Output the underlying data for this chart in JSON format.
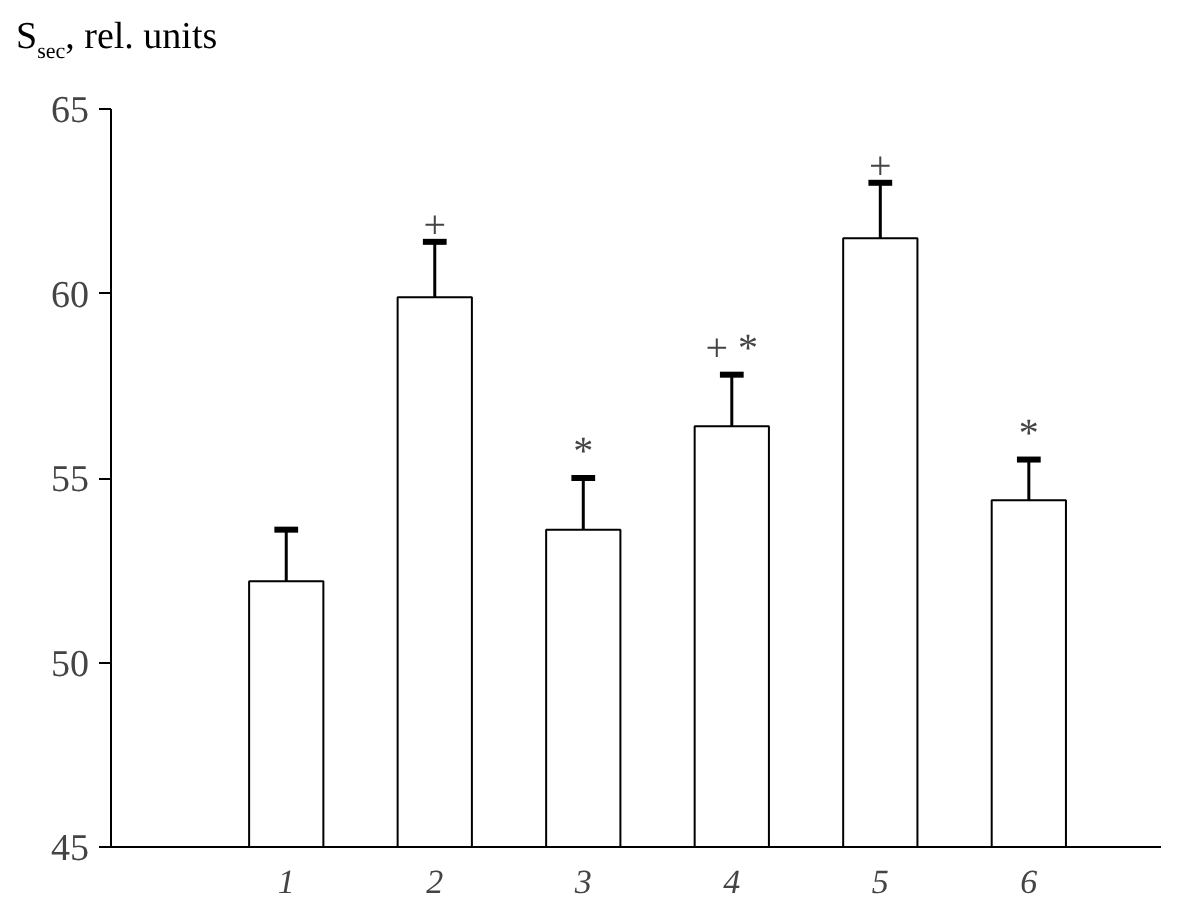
{
  "chart_data": {
    "type": "bar",
    "ylabel": "S$_{sec}$, rel. units",
    "categories": [
      "1",
      "2",
      "3",
      "4",
      "5",
      "6"
    ],
    "values": [
      52.2,
      59.9,
      53.6,
      56.4,
      61.5,
      54.4
    ],
    "errors": [
      [
        52.2,
        53.6
      ],
      [
        59.9,
        61.4
      ],
      [
        53.6,
        55.0
      ],
      [
        56.4,
        57.8
      ],
      [
        61.5,
        63.0
      ],
      [
        54.4,
        55.5
      ]
    ],
    "color": "#ffffff",
    "ylim": [
      45,
      65
    ],
    "yticks": [
      45,
      50,
      55,
      60,
      65
    ],
    "grid": false,
    "annotations": [
      {
        "text": "+",
        "x": "2",
        "y": 61.4
      },
      {
        "text": "*",
        "x": "3",
        "y": 55.0
      },
      {
        "text": "+ *",
        "x": "4",
        "y": 57.8
      },
      {
        "text": "+",
        "x": "5",
        "y": 63.0
      },
      {
        "text": "*",
        "x": "6",
        "y": 55.5
      }
    ]
  }
}
